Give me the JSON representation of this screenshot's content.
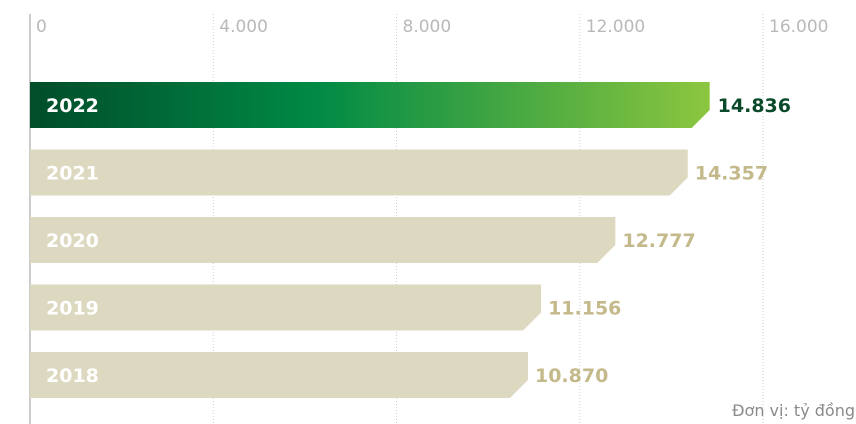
{
  "chart_data": {
    "type": "bar",
    "orientation": "horizontal",
    "categories": [
      "2022",
      "2021",
      "2020",
      "2019",
      "2018"
    ],
    "values": [
      14836,
      14357,
      12777,
      11156,
      10870
    ],
    "value_labels": [
      "14.836",
      "14.357",
      "12.777",
      "11.156",
      "10.870"
    ],
    "x_ticks": [
      0,
      4000,
      8000,
      12000,
      16000
    ],
    "x_tick_labels": [
      "0",
      "4.000",
      "8.000",
      "12.000",
      "16.000"
    ],
    "xlim": [
      0,
      16000
    ],
    "grid": true,
    "unit": "Đơn vị: tỷ đồng",
    "highlight_index": 0,
    "colors": {
      "highlight_start": "#004d2a",
      "highlight_mid": "#008a45",
      "highlight_end": "#8cc63f",
      "highlight_label": "#0a4a2a",
      "bar": "#ddd9c0",
      "bar_label": "#c4b98a",
      "grid": "#cfcfcf",
      "axis": "#9a9a9a"
    }
  }
}
